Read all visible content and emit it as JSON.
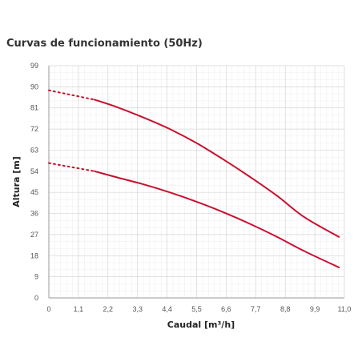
{
  "chart_data": {
    "type": "line",
    "title": "Curvas de funcionamiento (50Hz)",
    "xlabel": "Caudal [m³/h]",
    "ylabel": "Altura [m]",
    "xlim": [
      0,
      11.0
    ],
    "ylim": [
      0,
      99
    ],
    "x_ticks": [
      "0",
      "1,1",
      "2,2",
      "3,3",
      "4,4",
      "5,5",
      "6,6",
      "7,7",
      "8,8",
      "9,9",
      "11,0"
    ],
    "y_ticks": [
      "0",
      "9",
      "18",
      "27",
      "36",
      "45",
      "54",
      "63",
      "72",
      "81",
      "90",
      "99"
    ],
    "grid": true,
    "line_color": "#c8102e",
    "series": [
      {
        "dotted": [
          [
            0,
            88.5
          ],
          [
            1.7,
            84.5
          ]
        ],
        "values": [
          [
            1.7,
            84.5
          ],
          [
            2.5,
            81.5
          ],
          [
            3.5,
            77
          ],
          [
            4.5,
            72
          ],
          [
            5.5,
            66
          ],
          [
            6.5,
            59
          ],
          [
            7.5,
            51.5
          ],
          [
            8.5,
            43.5
          ],
          [
            9.5,
            34.5
          ],
          [
            10.8,
            26
          ]
        ]
      },
      {
        "dotted": [
          [
            0,
            57.5
          ],
          [
            1.7,
            54
          ]
        ],
        "values": [
          [
            1.7,
            54
          ],
          [
            2.5,
            51.5
          ],
          [
            3.5,
            48.5
          ],
          [
            4.5,
            45
          ],
          [
            5.5,
            41
          ],
          [
            6.5,
            36.5
          ],
          [
            7.5,
            31.5
          ],
          [
            8.5,
            26
          ],
          [
            9.5,
            20
          ],
          [
            10.8,
            13
          ]
        ]
      }
    ]
  }
}
